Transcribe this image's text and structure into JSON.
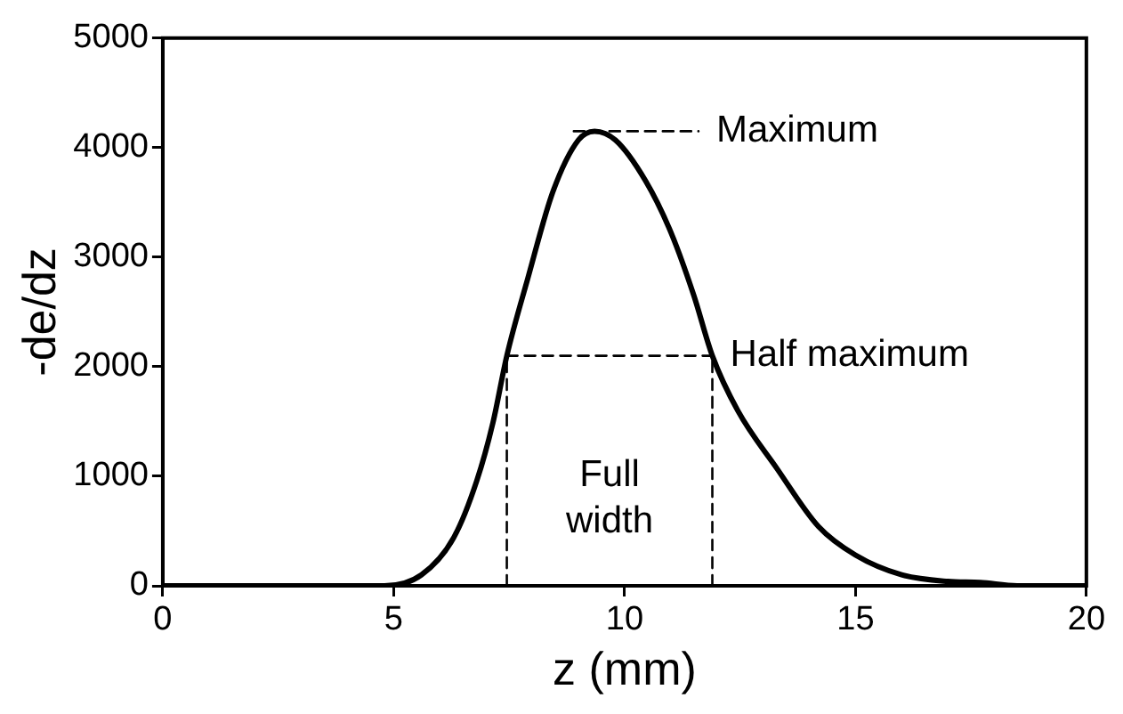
{
  "chart_data": {
    "type": "line",
    "xlabel": "z (mm)",
    "ylabel": "-de/dz",
    "xlim": [
      0,
      20
    ],
    "xticks": [
      0,
      5,
      10,
      15,
      20
    ],
    "ylim": [
      0,
      5000
    ],
    "yticks": [
      0,
      1000,
      2000,
      3000,
      4000,
      5000
    ],
    "grid": false,
    "legend": false,
    "marker": "none",
    "series": [
      {
        "color": "#000000",
        "line_style": "solid",
        "x": [
          0,
          4.8,
          5.6,
          6.3,
          6.8,
          7.15,
          7.45,
          7.9,
          8.45,
          9.0,
          9.35,
          9.8,
          10.45,
          11.0,
          11.5,
          11.9,
          12.45,
          13.3,
          14.2,
          15.0,
          16.0,
          17.0,
          17.7,
          18.5,
          20
        ],
        "values": [
          0,
          0,
          100,
          440,
          960,
          1490,
          2100,
          2800,
          3600,
          4070,
          4150,
          4070,
          3700,
          3230,
          2650,
          2100,
          1600,
          1070,
          540,
          280,
          100,
          40,
          30,
          0,
          0
        ]
      },
      {
        "color": "#000000",
        "line_style": "dashed",
        "x": [
          8.9,
          11.6
        ],
        "values": [
          4150,
          4150
        ]
      },
      {
        "color": "#000000",
        "line_style": "dashed",
        "x": [
          7.45,
          11.9
        ],
        "values": [
          2100,
          2100
        ]
      },
      {
        "color": "#000000",
        "line_style": "dashed",
        "x": [
          7.45,
          7.45
        ],
        "values": [
          0,
          2100
        ]
      },
      {
        "color": "#000000",
        "line_style": "dashed",
        "x": [
          11.9,
          11.9
        ],
        "values": [
          0,
          2100
        ]
      }
    ],
    "annotations": [
      "Maximum",
      "Half maximum",
      "Full width"
    ]
  }
}
